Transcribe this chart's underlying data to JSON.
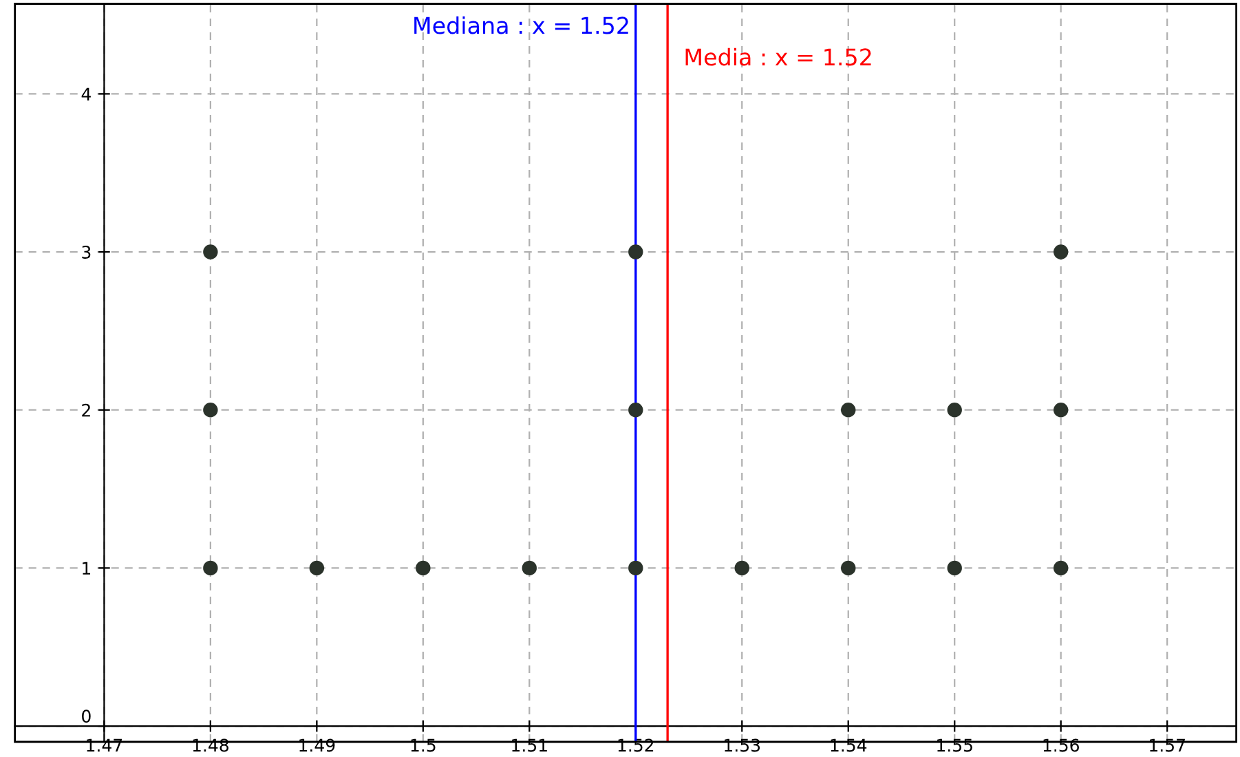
{
  "chart_data": {
    "type": "scatter",
    "x": [
      1.48,
      1.48,
      1.48,
      1.49,
      1.5,
      1.51,
      1.52,
      1.52,
      1.52,
      1.53,
      1.54,
      1.54,
      1.55,
      1.55,
      1.56,
      1.56,
      1.56
    ],
    "series": [
      {
        "color": "#2b332b",
        "values": [
          1,
          2,
          3,
          1,
          1,
          1,
          1,
          2,
          3,
          1,
          1,
          2,
          1,
          2,
          1,
          2,
          3
        ]
      }
    ],
    "marker": "circle",
    "xlim": [
      1.4616,
      1.5765
    ],
    "ylim": [
      -0.1,
      4.57
    ],
    "xticks": [
      1.47,
      1.48,
      1.49,
      1.5,
      1.51,
      1.52,
      1.53,
      1.54,
      1.55,
      1.56,
      1.57
    ],
    "yticks": [
      0,
      1,
      2,
      3,
      4
    ],
    "grid": true,
    "ref_lines": [
      {
        "axis": "x",
        "value": 1.52,
        "label": "Mediana : x = 1.52",
        "color": "#0000ff"
      },
      {
        "axis": "x",
        "value": 1.523,
        "label": "Media : x = 1.52",
        "color": "#ff0000"
      }
    ]
  }
}
